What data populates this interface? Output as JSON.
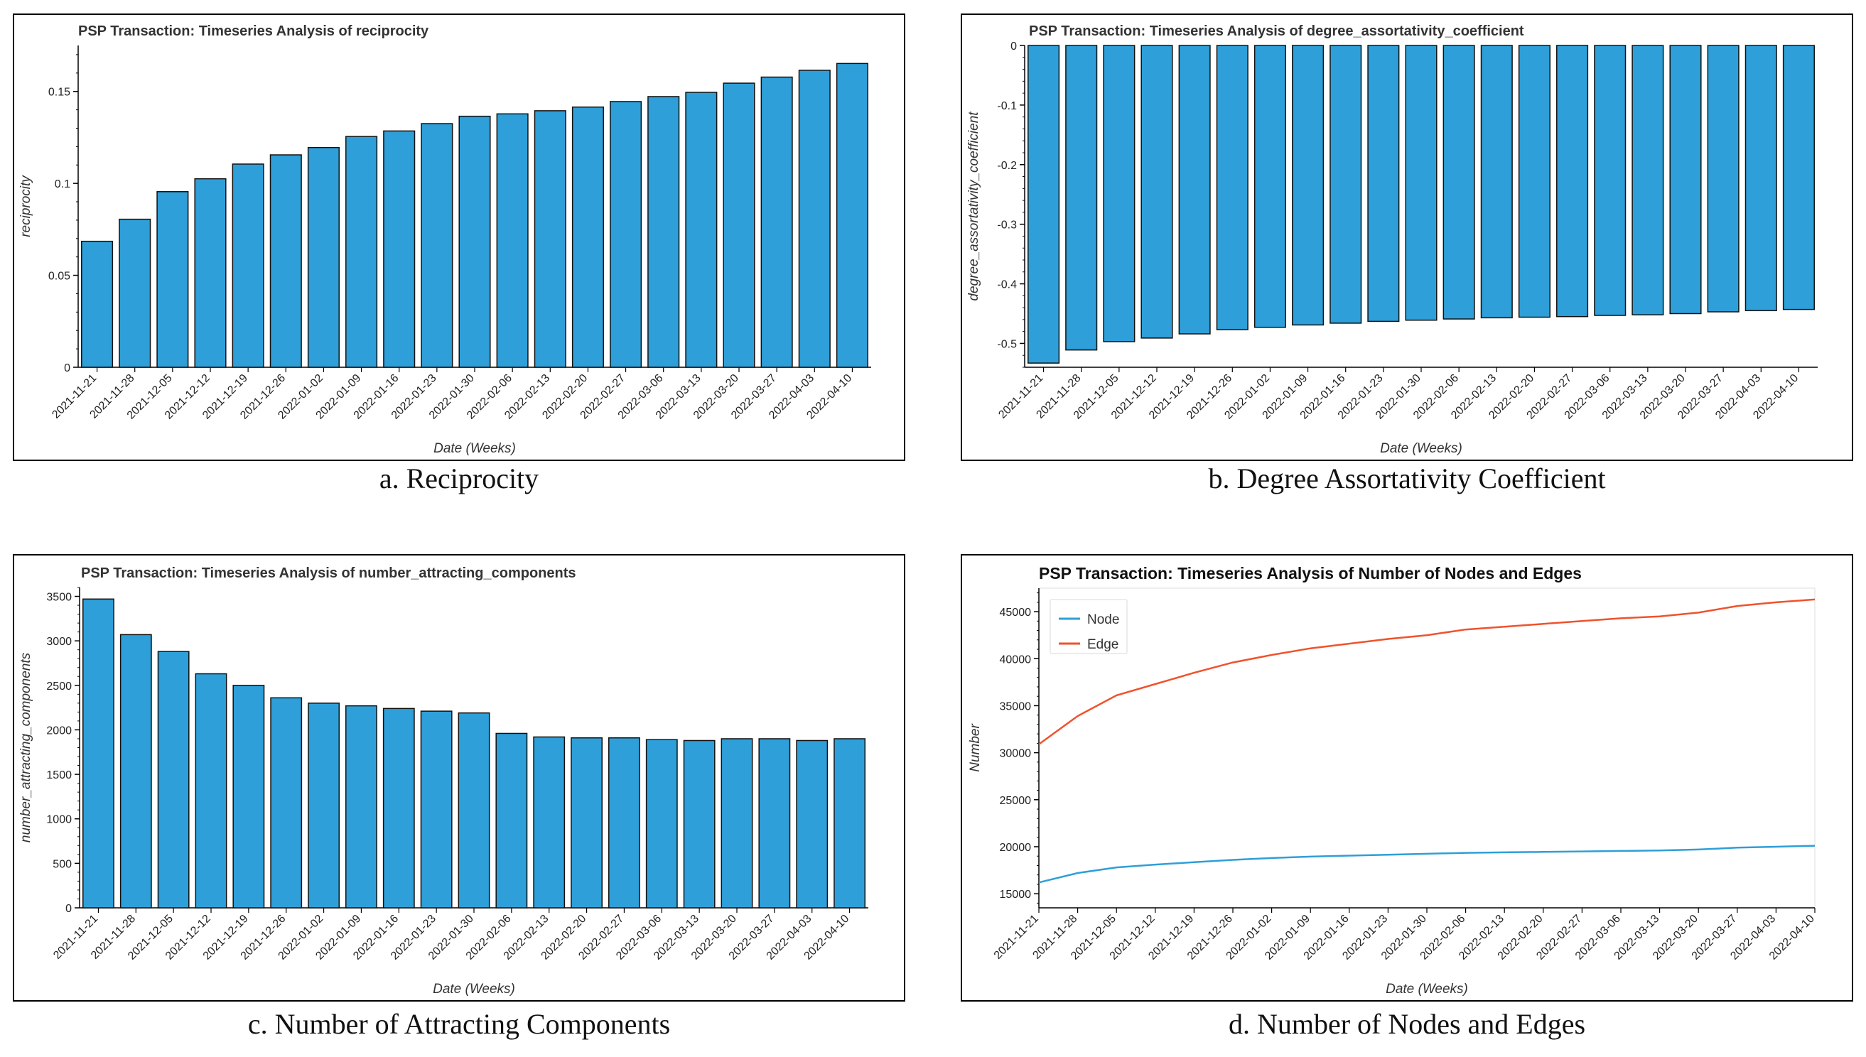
{
  "captions": {
    "a": "a. Reciprocity",
    "b": "b. Degree Assortativity Coefficient",
    "c": "c. Number of Attracting Components",
    "d": "d. Number of Nodes and Edges"
  },
  "chart_data": [
    {
      "id": "a",
      "type": "bar",
      "title": "PSP Transaction: Timeseries Analysis of reciprocity",
      "xlabel": "Date (Weeks)",
      "ylabel": "reciprocity",
      "categories": [
        "2021-11-21",
        "2021-11-28",
        "2021-12-05",
        "2021-12-12",
        "2021-12-19",
        "2021-12-26",
        "2022-01-02",
        "2022-01-09",
        "2022-01-16",
        "2022-01-23",
        "2022-01-30",
        "2022-02-06",
        "2022-02-13",
        "2022-02-20",
        "2022-02-27",
        "2022-03-06",
        "2022-03-13",
        "2022-03-20",
        "2022-03-27",
        "2022-04-03",
        "2022-04-10"
      ],
      "values": [
        0.0685,
        0.0805,
        0.0955,
        0.1025,
        0.1105,
        0.1155,
        0.1195,
        0.1255,
        0.1285,
        0.1325,
        0.1365,
        0.1378,
        0.1395,
        0.1415,
        0.1445,
        0.1472,
        0.1495,
        0.1545,
        0.1578,
        0.1615,
        0.1652
      ],
      "ylim": [
        0,
        0.175
      ],
      "yticks": [
        0,
        0.05,
        0.1,
        0.15
      ],
      "ytick_labels": [
        "0",
        "0.05",
        "0.1",
        "0.15"
      ],
      "bar_color": "#2e9fd8"
    },
    {
      "id": "b",
      "type": "bar",
      "title": "PSP Transaction: Timeseries Analysis of degree_assortativity_coefficient",
      "xlabel": "Date (Weeks)",
      "ylabel": "degree_assortativity_coefficient",
      "categories": [
        "2021-11-21",
        "2021-11-28",
        "2021-12-05",
        "2021-12-12",
        "2021-12-19",
        "2021-12-26",
        "2022-01-02",
        "2022-01-09",
        "2022-01-16",
        "2022-01-23",
        "2022-01-30",
        "2022-02-06",
        "2022-02-13",
        "2022-02-20",
        "2022-02-27",
        "2022-03-06",
        "2022-03-13",
        "2022-03-20",
        "2022-03-27",
        "2022-04-03",
        "2022-04-10"
      ],
      "values": [
        -0.533,
        -0.511,
        -0.497,
        -0.491,
        -0.484,
        -0.477,
        -0.473,
        -0.469,
        -0.466,
        -0.463,
        -0.461,
        -0.459,
        -0.457,
        -0.456,
        -0.455,
        -0.453,
        -0.452,
        -0.45,
        -0.447,
        -0.445,
        -0.443
      ],
      "ylim": [
        -0.54,
        0
      ],
      "yticks": [
        -0.5,
        -0.4,
        -0.3,
        -0.2,
        -0.1,
        0
      ],
      "ytick_labels": [
        "-0.5",
        "-0.4",
        "-0.3",
        "-0.2",
        "-0.1",
        "0"
      ],
      "bar_color": "#2e9fd8"
    },
    {
      "id": "c",
      "type": "bar",
      "title": "PSP Transaction: Timeseries Analysis of number_attracting_components",
      "xlabel": "Date (Weeks)",
      "ylabel": "number_attracting_components",
      "categories": [
        "2021-11-21",
        "2021-11-28",
        "2021-12-05",
        "2021-12-12",
        "2021-12-19",
        "2021-12-26",
        "2022-01-02",
        "2022-01-09",
        "2022-01-16",
        "2022-01-23",
        "2022-01-30",
        "2022-02-06",
        "2022-02-13",
        "2022-02-20",
        "2022-02-27",
        "2022-03-06",
        "2022-03-13",
        "2022-03-20",
        "2022-03-27",
        "2022-04-03",
        "2022-04-10"
      ],
      "values": [
        3470,
        3070,
        2880,
        2630,
        2500,
        2360,
        2300,
        2270,
        2240,
        2210,
        2190,
        1960,
        1920,
        1910,
        1910,
        1890,
        1880,
        1900,
        1900,
        1880,
        1900
      ],
      "ylim": [
        0,
        3600
      ],
      "yticks": [
        0,
        500,
        1000,
        1500,
        2000,
        2500,
        3000,
        3500
      ],
      "ytick_labels": [
        "0",
        "500",
        "1000",
        "1500",
        "2000",
        "2500",
        "3000",
        "3500"
      ],
      "bar_color": "#2e9fd8"
    },
    {
      "id": "d",
      "type": "line",
      "title": "PSP Transaction: Timeseries Analysis of Number of Nodes and Edges",
      "xlabel": "Date (Weeks)",
      "ylabel": "Number",
      "categories": [
        "2021-11-21",
        "2021-11-28",
        "2021-12-05",
        "2021-12-12",
        "2021-12-19",
        "2021-12-26",
        "2022-01-02",
        "2022-01-09",
        "2022-01-16",
        "2022-01-23",
        "2022-01-30",
        "2022-02-06",
        "2022-02-13",
        "2022-02-20",
        "2022-02-27",
        "2022-03-06",
        "2022-03-13",
        "2022-03-20",
        "2022-03-27",
        "2022-04-03",
        "2022-04-10"
      ],
      "series": [
        {
          "name": "Node",
          "color": "#2e9fd8",
          "values": [
            16200,
            17200,
            17800,
            18100,
            18350,
            18600,
            18800,
            18950,
            19050,
            19150,
            19250,
            19350,
            19400,
            19450,
            19500,
            19550,
            19600,
            19700,
            19900,
            20000,
            20100
          ]
        },
        {
          "name": "Edge",
          "color": "#f0522b",
          "values": [
            30900,
            33900,
            36100,
            37300,
            38500,
            39600,
            40400,
            41100,
            41600,
            42100,
            42500,
            43100,
            43400,
            43700,
            44000,
            44300,
            44500,
            44900,
            45600,
            46000,
            46300
          ]
        }
      ],
      "ylim": [
        13500,
        47500
      ],
      "yticks": [
        15000,
        20000,
        25000,
        30000,
        35000,
        40000,
        45000
      ],
      "ytick_labels": [
        "15000",
        "20000",
        "25000",
        "30000",
        "35000",
        "40000",
        "45000"
      ],
      "legend": "top-left"
    }
  ]
}
